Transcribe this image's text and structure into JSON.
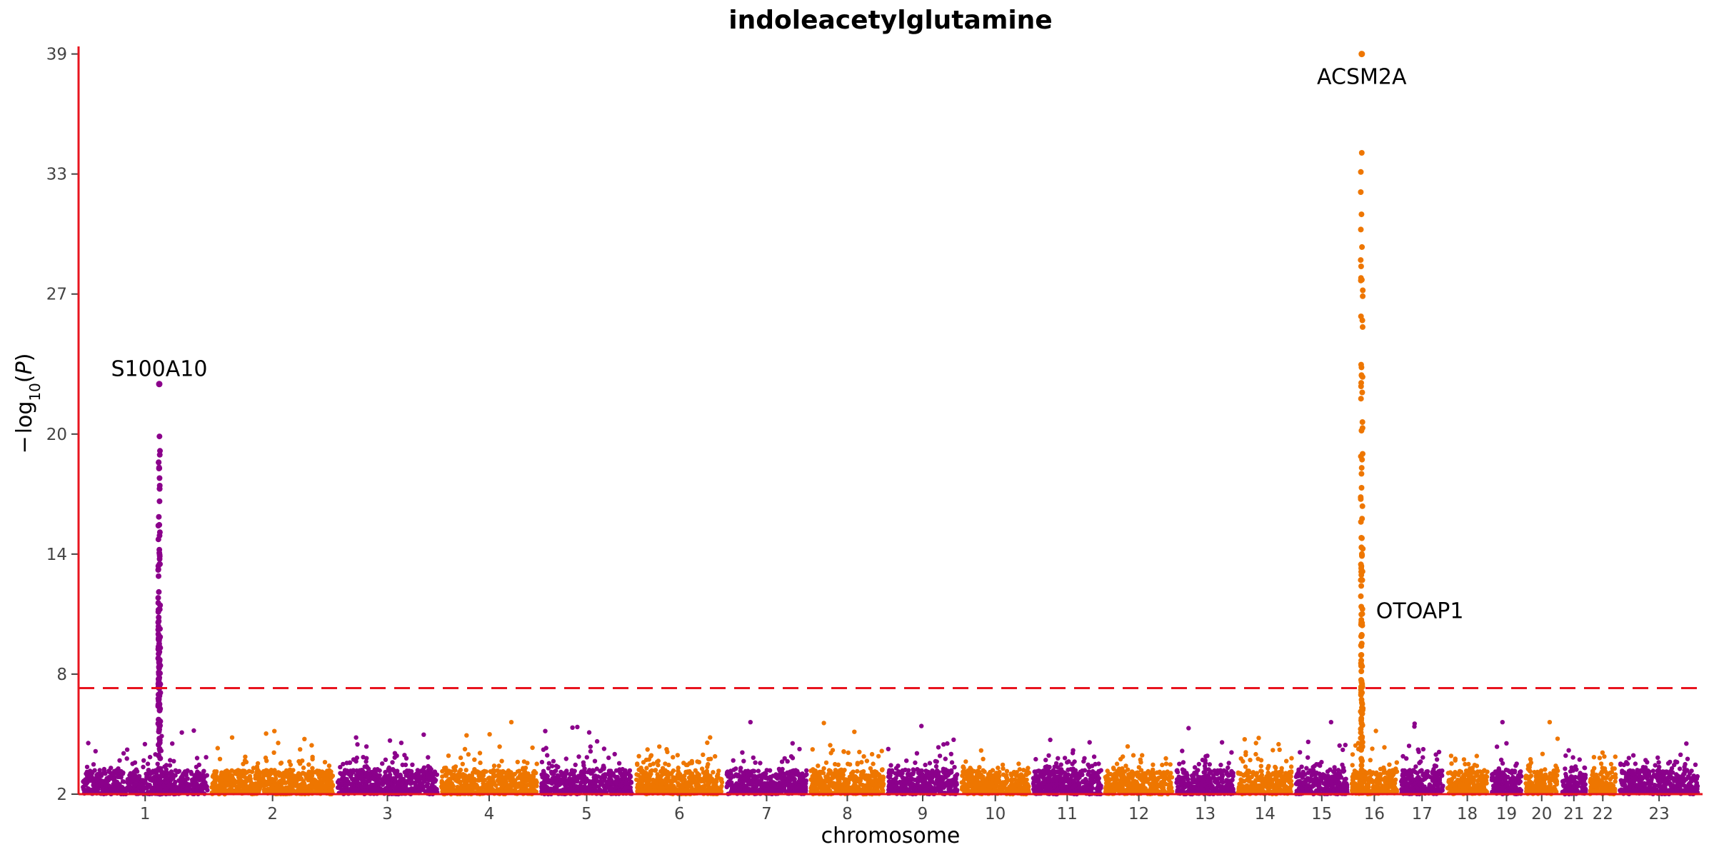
{
  "chart_data": {
    "type": "scatter",
    "title": "indoleacetylglutamine",
    "xlabel": "chromosome",
    "ylabel": "−log10(P)",
    "ylim": [
      2,
      39.2
    ],
    "yticks": [
      2,
      8,
      14,
      20,
      27,
      33,
      39
    ],
    "significance_threshold": 7.3,
    "colors": {
      "odd": "#8B008B",
      "even": "#EE7600",
      "axis": "#E8141E",
      "threshold": "#E8141E"
    },
    "chromosomes": [
      {
        "label": "1",
        "length": 248
      },
      {
        "label": "2",
        "length": 242
      },
      {
        "label": "3",
        "length": 198
      },
      {
        "label": "4",
        "length": 190
      },
      {
        "label": "5",
        "length": 181
      },
      {
        "label": "6",
        "length": 171
      },
      {
        "label": "7",
        "length": 159
      },
      {
        "label": "8",
        "length": 145
      },
      {
        "label": "9",
        "length": 138
      },
      {
        "label": "10",
        "length": 134
      },
      {
        "label": "11",
        "length": 135
      },
      {
        "label": "12",
        "length": 133
      },
      {
        "label": "13",
        "length": 114
      },
      {
        "label": "14",
        "length": 107
      },
      {
        "label": "15",
        "length": 102
      },
      {
        "label": "16",
        "length": 90
      },
      {
        "label": "17",
        "length": 83
      },
      {
        "label": "18",
        "length": 80
      },
      {
        "label": "19",
        "length": 59
      },
      {
        "label": "20",
        "length": 64
      },
      {
        "label": "21",
        "length": 47
      },
      {
        "label": "22",
        "length": 51
      },
      {
        "label": "23",
        "length": 156
      }
    ],
    "peaks": [
      {
        "chr": "1",
        "pos": 152,
        "max": 22.5,
        "min": 7.3
      },
      {
        "chr": "16",
        "pos": 20,
        "max": 39.0,
        "min": 7.3
      }
    ],
    "annotations": [
      {
        "text": "S100A10",
        "chr": "1",
        "pos": 152,
        "y": 22.9
      },
      {
        "text": "ACSM2A",
        "chr": "16",
        "pos": 20,
        "y": 37.5
      },
      {
        "text": "OTOAP1",
        "chr": "16",
        "pos": 20,
        "y": 10.8
      }
    ]
  }
}
